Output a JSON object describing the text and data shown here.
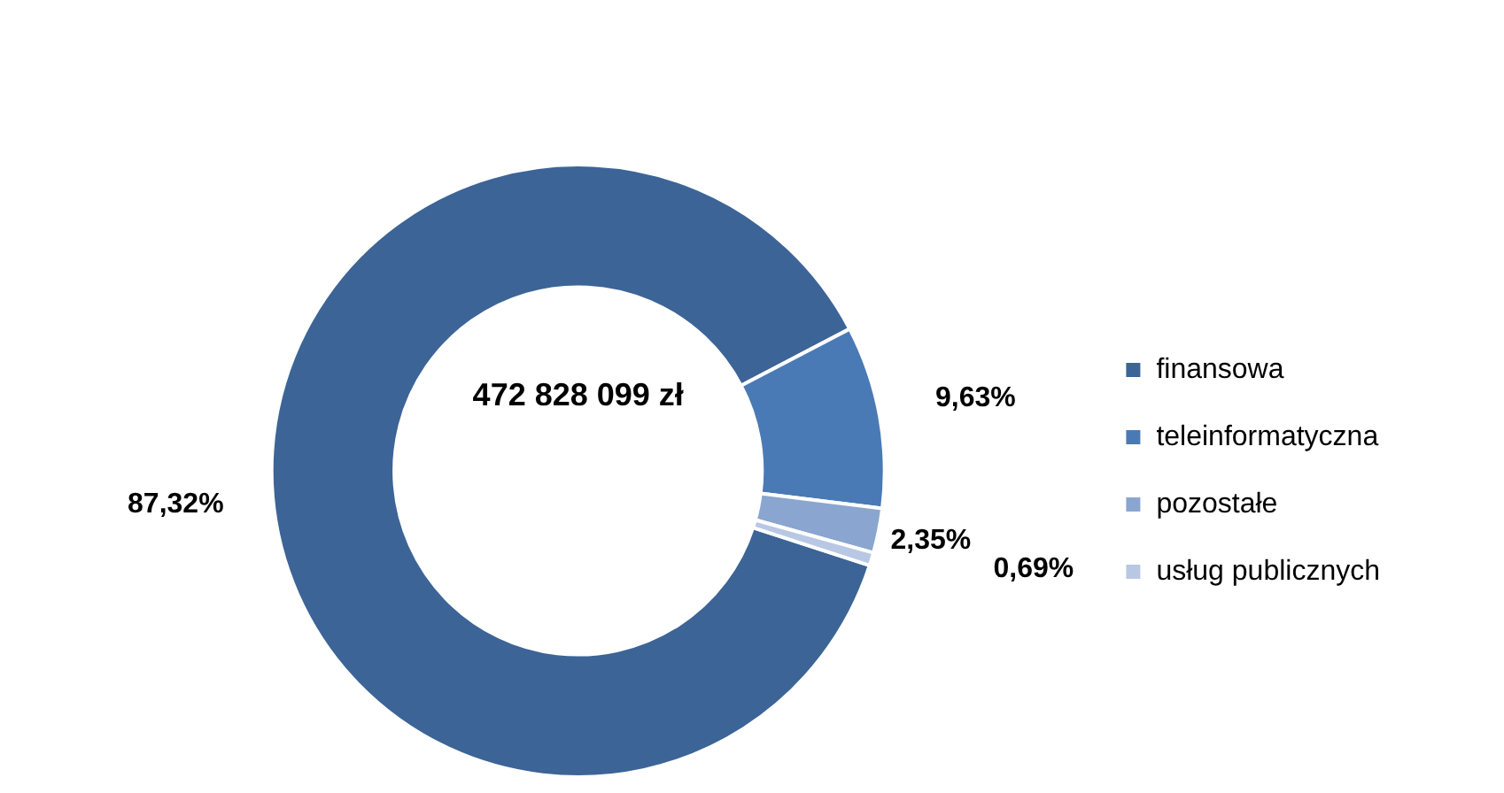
{
  "chart_data": {
    "type": "donut",
    "categories": [
      "finansowa",
      "teleinformatyczna",
      "pozostałe",
      "usług publicznych"
    ],
    "values": [
      87.32,
      9.63,
      2.35,
      0.69
    ],
    "colors": [
      "#3c6496",
      "#4a7ab5",
      "#8aa6d0",
      "#b8c8e4"
    ],
    "value_labels": [
      "87,32%",
      "9,63%",
      "2,35%",
      "0,69%"
    ],
    "annotations": [
      "472 828 099 zł"
    ],
    "legend": "right"
  }
}
